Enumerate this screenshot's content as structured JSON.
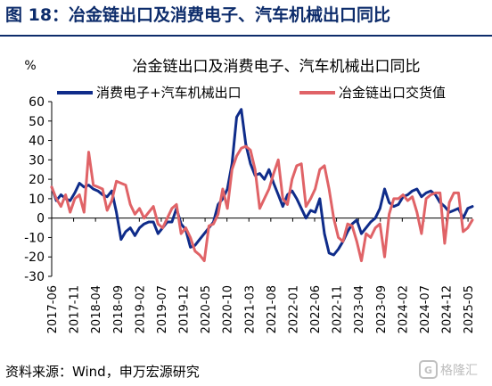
{
  "figure": {
    "title": "图 18：冶金链出口及消费电子、汽车机械出口同比",
    "source": "资料来源：Wind，申万宏源研究",
    "watermark": "格隆汇"
  },
  "chart_data": {
    "type": "line",
    "title": "冶金链出口及消费电子、汽车机械出口同比",
    "ylabel": "%",
    "ylim": [
      -30,
      60
    ],
    "yticks": [
      -30,
      -20,
      -10,
      0,
      10,
      20,
      30,
      40,
      50,
      60
    ],
    "x_tick_labels": [
      "2017-06",
      "2017-11",
      "2018-04",
      "2018-09",
      "2019-02",
      "2019-07",
      "2019-12",
      "2020-05",
      "2020-10",
      "2021-03",
      "2021-08",
      "2022-01",
      "2022-06",
      "2022-11",
      "2023-04",
      "2023-09",
      "2024-02",
      "2024-07",
      "2024-12",
      "2025-05"
    ],
    "x_start": "2017-06",
    "x_end": "2025-06",
    "grid": false,
    "legend_position": "top",
    "series": [
      {
        "name": "消费电子+汽车机械出口",
        "color": "#0f2c8a",
        "values": [
          16,
          9,
          12,
          10,
          9,
          13,
          18,
          16,
          17,
          15,
          14,
          12,
          11,
          14,
          3,
          -11,
          -7,
          -5,
          -9,
          -5,
          -3,
          -2,
          -2,
          -8,
          -5,
          -2,
          -2,
          5,
          -3,
          -6,
          -15,
          -14,
          -11,
          -8,
          -5,
          -2,
          7,
          10,
          15,
          28,
          52,
          56,
          38,
          28,
          22,
          23,
          20,
          25,
          18,
          12,
          6,
          12,
          14,
          10,
          5,
          0,
          4,
          3,
          10,
          -8,
          -18,
          -19,
          -16,
          -12,
          -7,
          -3,
          -1,
          -8,
          -5,
          -2,
          0,
          5,
          15,
          8,
          6,
          7,
          11,
          12,
          14,
          15,
          11,
          13,
          14,
          12,
          8,
          6,
          3,
          4,
          5,
          0,
          5,
          6
        ]
      },
      {
        "name": "冶金链出口交货值",
        "color": "#e06367",
        "values": [
          16,
          10,
          6,
          12,
          3,
          10,
          12,
          3,
          34,
          17,
          16,
          15,
          4,
          9,
          19,
          18,
          17,
          7,
          2,
          5,
          0,
          3,
          6,
          -3,
          -5,
          0,
          5,
          7,
          -8,
          -5,
          -10,
          -17,
          -19,
          -22,
          -4,
          -3,
          2,
          15,
          5,
          25,
          32,
          36,
          37,
          35,
          25,
          5,
          10,
          15,
          23,
          30,
          10,
          7,
          20,
          27,
          28,
          6,
          10,
          15,
          25,
          27,
          15,
          0,
          -10,
          -12,
          -3,
          -4,
          -12,
          -22,
          -8,
          -10,
          -5,
          -3,
          -20,
          2,
          10,
          10,
          12,
          9,
          11,
          3,
          -8,
          10,
          12,
          13,
          13,
          -13,
          8,
          13,
          13,
          -7,
          -5,
          -1
        ]
      }
    ]
  }
}
